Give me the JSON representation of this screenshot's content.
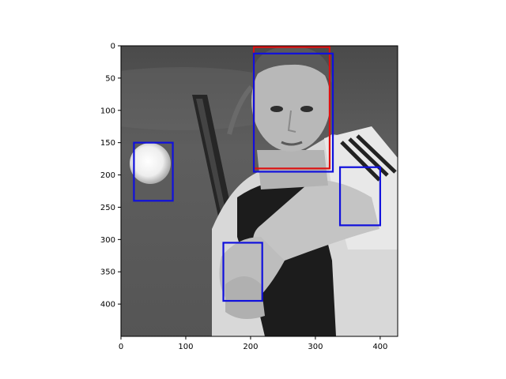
{
  "image_extent": {
    "x": [
      0,
      427
    ],
    "y": [
      0,
      450
    ]
  },
  "x_ticks": [
    0,
    100,
    200,
    300,
    400
  ],
  "y_ticks": [
    0,
    50,
    100,
    150,
    200,
    250,
    300,
    350,
    400
  ],
  "boxes": [
    {
      "label": "",
      "color": "#dd1111",
      "x0": 205,
      "y0": 2,
      "x1": 322,
      "y1": 190
    },
    {
      "label": "",
      "color": "#1010dd",
      "x0": 205,
      "y0": 12,
      "x1": 327,
      "y1": 195
    },
    {
      "label": "",
      "color": "#1010dd",
      "x0": 20,
      "y0": 150,
      "x1": 80,
      "y1": 240
    },
    {
      "label": "",
      "color": "#1010dd",
      "x0": 338,
      "y0": 188,
      "x1": 400,
      "y1": 278
    },
    {
      "label": "",
      "color": "#1010dd",
      "x0": 158,
      "y0": 305,
      "x1": 218,
      "y1": 395
    }
  ]
}
